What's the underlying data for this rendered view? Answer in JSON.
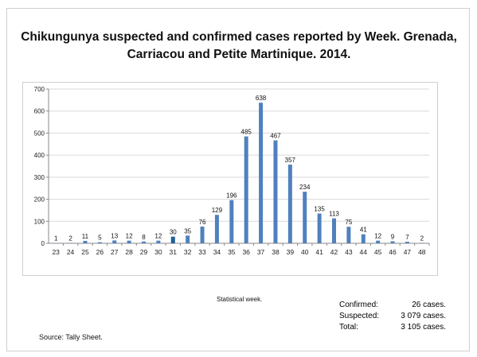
{
  "title_line1": "Chikungunya suspected and confirmed cases reported by Week. Grenada,",
  "title_line2": "Carriacou and Petite Martinique. 2014.",
  "xlabel": "Statistical week.",
  "source": "Source: Tally Sheet.",
  "summary": [
    {
      "label": "Confirmed:",
      "value": "26 cases."
    },
    {
      "label": "Suspected:",
      "value": "3 079 cases."
    },
    {
      "label": "Total:",
      "value": "3 105 cases."
    }
  ],
  "colors": {
    "bar": "#4f81bd",
    "confirmed_bar": "#1f5f9a",
    "grid": "#d9d9d9"
  },
  "chart_data": {
    "type": "bar",
    "categories": [
      "23",
      "24",
      "25",
      "26",
      "27",
      "28",
      "29",
      "30",
      "31",
      "32",
      "33",
      "34",
      "35",
      "36",
      "37",
      "38",
      "39",
      "40",
      "41",
      "42",
      "43",
      "44",
      "45",
      "46",
      "47",
      "48"
    ],
    "values": [
      1,
      2,
      11,
      5,
      13,
      12,
      8,
      12,
      30,
      35,
      76,
      129,
      196,
      485,
      638,
      467,
      357,
      234,
      135,
      113,
      75,
      41,
      12,
      9,
      7,
      2
    ],
    "ylim": [
      0,
      700
    ],
    "yticks": [
      0,
      100,
      200,
      300,
      400,
      500,
      600,
      700
    ],
    "grid": "horizontal",
    "title": "Chikungunya suspected and confirmed cases reported by Week. Grenada, Carriacou and Petite Martinique. 2014.",
    "xlabel": "Statistical week.",
    "ylabel": ""
  }
}
